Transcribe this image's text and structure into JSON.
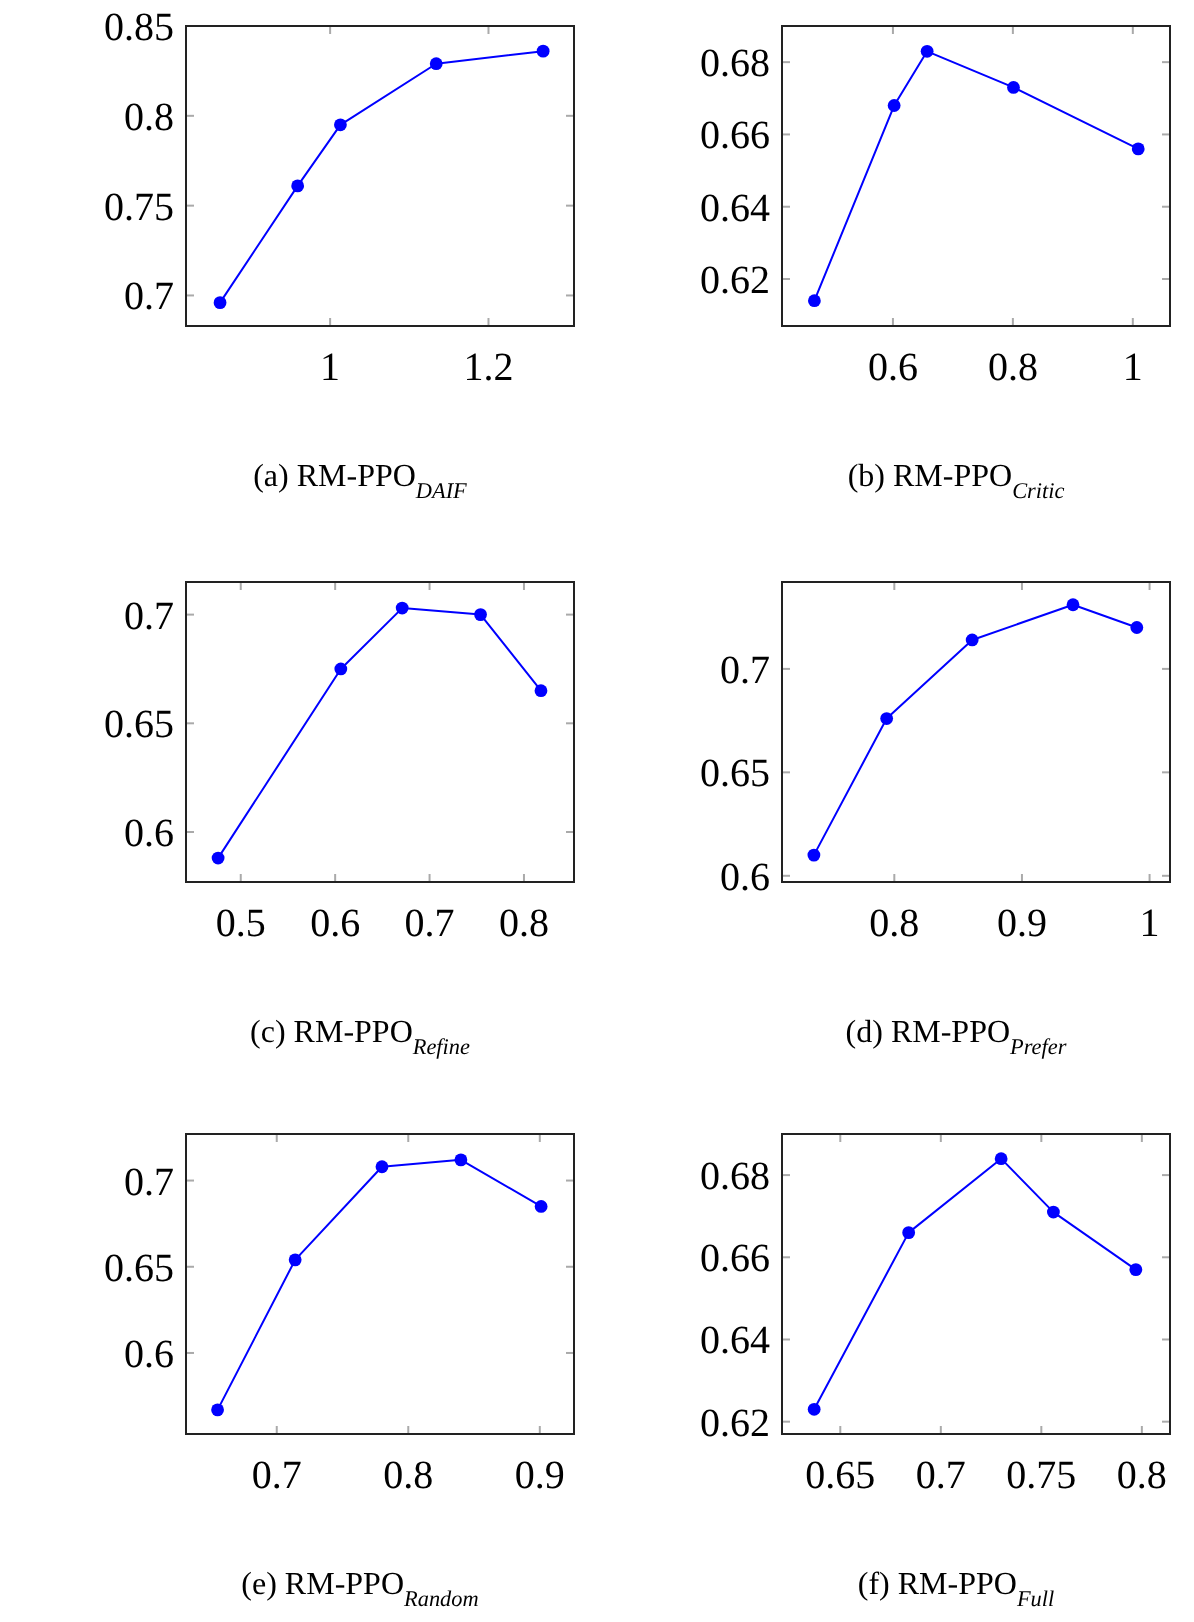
{
  "chart_data": [
    {
      "type": "line",
      "title": "(a) RM-PPO$_{DAIF}$",
      "x": [
        0.861,
        0.959,
        1.013,
        1.134,
        1.269
      ],
      "series": [
        {
          "color": "#0000ff",
          "values": [
            0.696,
            0.761,
            0.795,
            0.829,
            0.836
          ]
        }
      ],
      "xlim": [
        0.818,
        1.308
      ],
      "xticks": [
        1,
        1.2
      ],
      "ylim": [
        0.683,
        0.85
      ],
      "yticks": [
        0.7,
        0.75,
        0.8,
        0.85
      ],
      "marker": "circle"
    },
    {
      "type": "line",
      "title": "(b) RM-PPO$_{Critic}$",
      "x": [
        0.469,
        0.602,
        0.657,
        0.801,
        1.009
      ],
      "series": [
        {
          "color": "#0000ff",
          "values": [
            0.614,
            0.668,
            0.683,
            0.673,
            0.656
          ]
        }
      ],
      "xlim": [
        0.415,
        1.062
      ],
      "xticks": [
        0.6,
        0.8,
        1
      ],
      "ylim": [
        0.607,
        0.69
      ],
      "yticks": [
        0.62,
        0.64,
        0.66,
        0.68
      ],
      "marker": "circle"
    },
    {
      "type": "line",
      "title": "(c) RM-PPO$_{Refine}$",
      "x": [
        0.476,
        0.606,
        0.671,
        0.754,
        0.818
      ],
      "series": [
        {
          "color": "#0000ff",
          "values": [
            0.588,
            0.675,
            0.703,
            0.7,
            0.665
          ]
        }
      ],
      "xlim": [
        0.442,
        0.853
      ],
      "xticks": [
        0.5,
        0.6,
        0.7,
        0.8
      ],
      "ylim": [
        0.577,
        0.715
      ],
      "yticks": [
        0.6,
        0.65,
        0.7
      ],
      "marker": "circle"
    },
    {
      "type": "line",
      "title": "(d) RM-PPO$_{Prefer}$",
      "x": [
        0.737,
        0.794,
        0.861,
        0.94,
        0.99
      ],
      "series": [
        {
          "color": "#0000ff",
          "values": [
            0.61,
            0.676,
            0.714,
            0.731,
            0.72
          ]
        }
      ],
      "xlim": [
        0.712,
        1.016
      ],
      "xticks": [
        0.8,
        0.9,
        1
      ],
      "ylim": [
        0.597,
        0.742
      ],
      "yticks": [
        0.6,
        0.65,
        0.7
      ],
      "marker": "circle"
    },
    {
      "type": "line",
      "title": "(e) RM-PPO$_{Random}$",
      "x": [
        0.655,
        0.714,
        0.78,
        0.84,
        0.901
      ],
      "series": [
        {
          "color": "#0000ff",
          "values": [
            0.567,
            0.654,
            0.708,
            0.712,
            0.685
          ]
        }
      ],
      "xlim": [
        0.631,
        0.926
      ],
      "xticks": [
        0.7,
        0.8,
        0.9
      ],
      "ylim": [
        0.553,
        0.727
      ],
      "yticks": [
        0.6,
        0.65,
        0.7
      ],
      "marker": "circle"
    },
    {
      "type": "line",
      "title": "(f) RM-PPO$_{Full}$",
      "x": [
        0.637,
        0.684,
        0.73,
        0.756,
        0.797
      ],
      "series": [
        {
          "color": "#0000ff",
          "values": [
            0.623,
            0.666,
            0.684,
            0.671,
            0.657
          ]
        }
      ],
      "xlim": [
        0.621,
        0.814
      ],
      "xticks": [
        0.65,
        0.7,
        0.75,
        0.8
      ],
      "ylim": [
        0.617,
        0.69
      ],
      "yticks": [
        0.62,
        0.64,
        0.66,
        0.68
      ],
      "marker": "circle"
    }
  ]
}
